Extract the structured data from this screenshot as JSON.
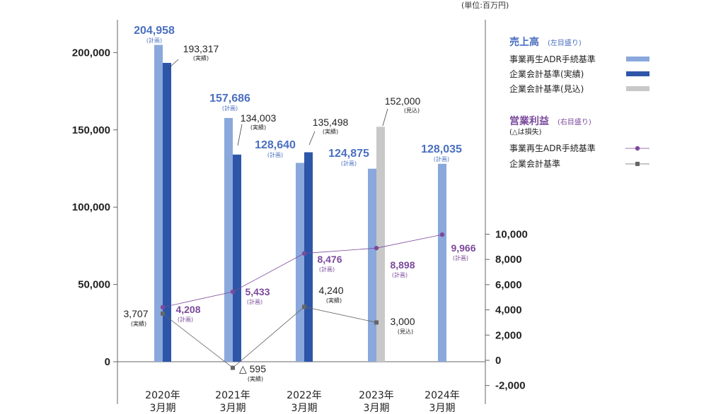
{
  "unit_label": "(単位:百万円)",
  "colors": {
    "plan_bar": "#8aa8dc",
    "actual_bar": "#2d56a8",
    "forecast_bar": "#c8c8c8",
    "plan_label": "#4a6fc0",
    "profit_plan_line": "#7b4a9c",
    "profit_actual_line": "#666666",
    "axis": "#666666",
    "text": "#222222"
  },
  "legend": {
    "sales_title": "売上高",
    "sales_sub": "(左目盛り)",
    "sales_items": [
      "事業再生ADR手続基準",
      "企業会計基準(実績)",
      "企業会計基準(見込)"
    ],
    "profit_title": "営業利益",
    "profit_sub": "(右目盛り)",
    "profit_note": "(△は損失)",
    "profit_items": [
      "事業再生ADR手続基準",
      "企業会計基準"
    ]
  },
  "chart_data": {
    "type": "bar",
    "categories": [
      [
        "2020年",
        "3月期"
      ],
      [
        "2021年",
        "3月期"
      ],
      [
        "2022年",
        "3月期"
      ],
      [
        "2023年",
        "3月期"
      ],
      [
        "2024年",
        "3月期"
      ]
    ],
    "left_axis": {
      "ticks": [
        "0",
        "50,000",
        "100,000",
        "150,000",
        "200,000"
      ],
      "tick_values": [
        0,
        50000,
        100000,
        150000,
        200000
      ],
      "ylim": [
        -25000,
        225000
      ]
    },
    "right_axis": {
      "ticks": [
        "-2,000",
        "0",
        "2,000",
        "4,000",
        "6,000",
        "8,000",
        "10,000"
      ],
      "tick_values": [
        -2000,
        0,
        2000,
        4000,
        6000,
        8000,
        10000
      ]
    },
    "bar_series": [
      {
        "key": "plan",
        "values": [
          204958,
          157686,
          128640,
          124875,
          128035
        ],
        "labels": [
          "204,958",
          "157,686",
          "128,640",
          "124,875",
          "128,035"
        ],
        "sublabel": "(計画)"
      },
      {
        "key": "actual",
        "values": [
          193317,
          134003,
          135498,
          null,
          null
        ],
        "labels": [
          "193,317",
          "134,003",
          "135,498",
          null,
          null
        ],
        "sublabel": "(実績)"
      },
      {
        "key": "forecast",
        "values": [
          null,
          null,
          null,
          152000,
          null
        ],
        "labels": [
          null,
          null,
          null,
          "152,000",
          null
        ],
        "sublabel": "(見込)"
      }
    ],
    "line_series": [
      {
        "key": "profit_plan",
        "values": [
          4208,
          5433,
          8476,
          8898,
          9966
        ],
        "labels": [
          "4,208",
          "5,433",
          "8,476",
          "8,898",
          "9,966"
        ],
        "sublabel": "(計画)"
      },
      {
        "key": "profit_actual",
        "values": [
          3707,
          -595,
          4240,
          3000,
          null
        ],
        "labels": [
          "3,707",
          "△ 595",
          "4,240",
          "3,000",
          null
        ],
        "sublabels": [
          "(実績)",
          "(実績)",
          "(実績)",
          "(見込)",
          null
        ]
      }
    ]
  }
}
